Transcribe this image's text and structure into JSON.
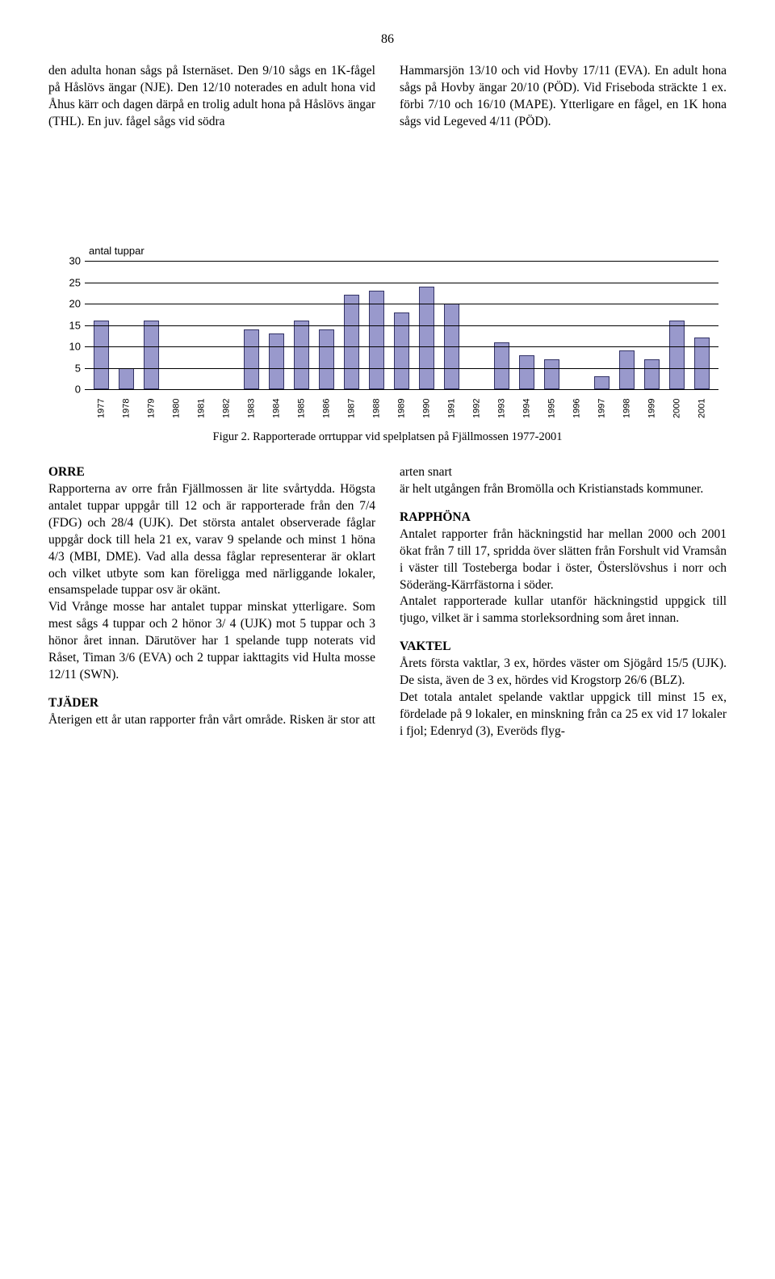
{
  "page_number": "86",
  "upper_left_text": "den adulta honan sågs på Isternäset. Den 9/10 sågs en 1K-fågel på Håslövs ängar (NJE). Den 12/10 noterades en adult hona vid Åhus kärr och dagen därpå en trolig adult hona på Håslövs ängar (THL). En juv. fågel sågs vid södra",
  "upper_right_text": "Hammarsjön 13/10 och vid Hovby 17/11 (EVA). En adult hona sågs på Hovby ängar 20/10 (PÖD). Vid Friseboda sträckte 1 ex. förbi 7/10 och 16/10 (MAPE). Ytterligare en fågel, en 1K hona sågs vid Legeved 4/11 (PÖD).",
  "chart": {
    "type": "bar",
    "y_axis_title": "antal tuppar",
    "categories": [
      "1977",
      "1978",
      "1979",
      "1980",
      "1981",
      "1982",
      "1983",
      "1984",
      "1985",
      "1986",
      "1987",
      "1988",
      "1989",
      "1990",
      "1991",
      "1992",
      "1993",
      "1994",
      "1995",
      "1996",
      "1997",
      "1998",
      "1999",
      "2000",
      "2001"
    ],
    "values": [
      16,
      5,
      16,
      0,
      0,
      0,
      14,
      13,
      16,
      14,
      22,
      23,
      18,
      24,
      20,
      0,
      11,
      8,
      7,
      0,
      3,
      9,
      7,
      16,
      12
    ],
    "bar_color": "#9999cc",
    "bar_border": "#333366",
    "ylim": [
      0,
      30
    ],
    "yticks": [
      0,
      5,
      10,
      15,
      20,
      25,
      30
    ],
    "grid_color": "#000000",
    "label_font": "Arial",
    "label_fontsize": 13
  },
  "chart_caption": "Figur 2. Rapporterade orrtuppar vid spelplatsen på Fjällmossen 1977-2001",
  "sections": {
    "orre": {
      "title": "ORRE",
      "body": "Rapporterna av orre från Fjällmossen är lite svårtydda. Högsta antalet tuppar uppgår till 12 och är rapporterade från den 7/4 (FDG) och 28/4 (UJK). Det största antalet observerade fåglar uppgår dock till hela 21 ex, varav 9 spelande och minst 1 höna 4/3 (MBI, DME). Vad alla dessa fåglar representerar är oklart och vilket utbyte som kan föreligga med närliggande lokaler, ensamspelade tuppar osv är okänt.\nVid Vrånge mosse har antalet tuppar minskat ytterligare. Som mest sågs 4 tuppar och 2 hönor 3/ 4 (UJK) mot 5 tuppar och 3 hönor året innan. Därutöver har 1 spelande tupp noterats vid Råset, Timan 3/6 (EVA) och 2 tuppar iakttagits vid Hulta mosse 12/11 (SWN)."
    },
    "tjader": {
      "title": "TJÄDER",
      "body": "Återigen ett år utan rapporter från vårt område. Risken är stor att arten snart"
    },
    "tjader_cont": "är helt utgången från Bromölla och Kristianstads kommuner.",
    "rapphona": {
      "title": "RAPPHÖNA",
      "body": "Antalet rapporter från häckningstid har mellan 2000 och 2001 ökat från 7 till 17, spridda över slätten från Forshult vid Vramsån i väster till Tosteberga bodar i öster, Österslövshus i norr och Söderäng-Kärrfästorna i söder.\nAntalet rapporterade kullar utanför häckningstid uppgick till tjugo, vilket är i samma storleksordning som året innan."
    },
    "vaktel": {
      "title": "VAKTEL",
      "body": "Årets första vaktlar, 3 ex, hördes väster om Sjögård 15/5 (UJK). De sista, även de 3 ex, hördes vid Krogstorp 26/6 (BLZ).\nDet totala antalet spelande vaktlar uppgick till minst 15 ex, fördelade på 9 lokaler, en minskning från ca 25 ex vid 17 lokaler i fjol; Edenryd (3), Everöds flyg-"
    }
  }
}
